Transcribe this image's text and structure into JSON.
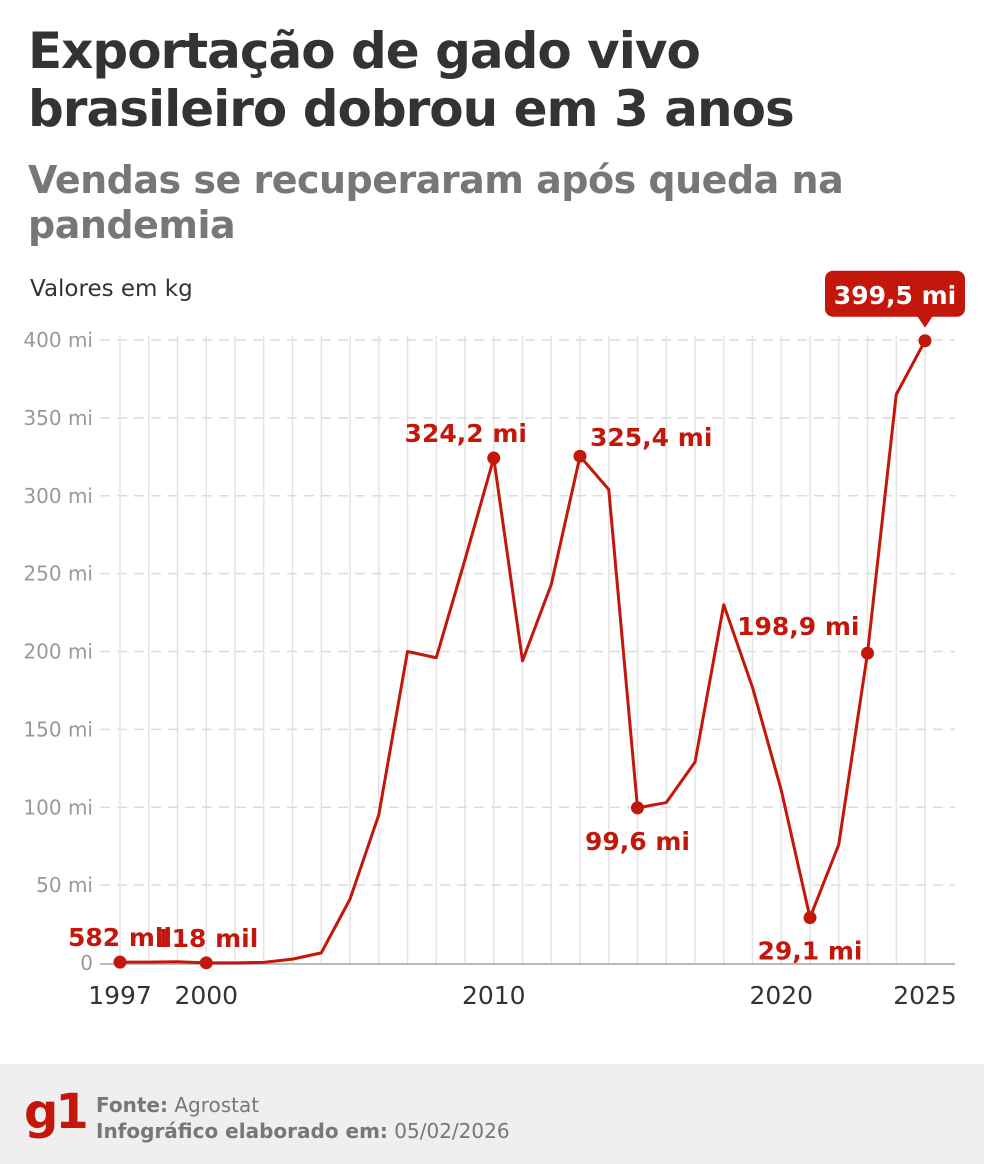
{
  "header": {
    "title": "Exportação de gado vivo brasileiro dobrou em 3 anos",
    "subtitle": "Vendas se recuperaram após queda na pandemia",
    "unit_note": "Valores em kg"
  },
  "chart_data": {
    "type": "line",
    "title": "Exportação de gado vivo brasileiro dobrou em 3 anos",
    "subtitle": "Vendas se recuperaram após queda na pandemia",
    "ylabel": "Valores em kg",
    "xlabel": "",
    "xlim": [
      1997,
      2025
    ],
    "ylim": [
      0,
      400
    ],
    "grid": true,
    "x_ticks": [
      1997,
      2000,
      2010,
      2020,
      2025
    ],
    "x_tick_labels": [
      "1997",
      "2000",
      "2010",
      "2020",
      "2025"
    ],
    "y_ticks": [
      0,
      50,
      100,
      150,
      200,
      250,
      300,
      350,
      400
    ],
    "y_tick_labels": [
      "0",
      "50 mi",
      "100 mi",
      "150 mi",
      "200 mi",
      "250 mi",
      "300 mi",
      "350 mi",
      "400 mi"
    ],
    "line_color": "#c4170c",
    "series": [
      {
        "x": [
          1997,
          1998,
          1999,
          2000,
          2001,
          2002,
          2003,
          2004,
          2005,
          2006,
          2007,
          2008,
          2009,
          2010,
          2011,
          2012,
          2013,
          2014,
          2015,
          2016,
          2017,
          2018,
          2019,
          2020,
          2021,
          2022,
          2023,
          2024,
          2025
        ],
        "values_millions": [
          0.582,
          0.6,
          0.8,
          0.118,
          0.1,
          0.4,
          2.5,
          6.5,
          41,
          95,
          200,
          196,
          259,
          324.2,
          194,
          243,
          325.4,
          304,
          99.6,
          103,
          129,
          230,
          177,
          111,
          29.1,
          76,
          198.9,
          365,
          399.5
        ]
      }
    ],
    "annotations": [
      {
        "x": 1997,
        "label": "582 mil",
        "position": "above"
      },
      {
        "x": 2000,
        "label": "118 mil",
        "position": "above"
      },
      {
        "x": 2010,
        "label": "324,2 mi",
        "position": "above-left"
      },
      {
        "x": 2013,
        "label": "325,4 mi",
        "position": "above-right"
      },
      {
        "x": 2015,
        "label": "99,6 mi",
        "position": "below"
      },
      {
        "x": 2021,
        "label": "29,1 mi",
        "position": "below"
      },
      {
        "x": 2023,
        "label": "198,9 mi",
        "position": "above-left"
      },
      {
        "x": 2025,
        "label": "399,5 mi",
        "position": "callout",
        "highlight": true
      }
    ]
  },
  "footer": {
    "logo": "g1",
    "source_label": "Fonte:",
    "source_value": "Agrostat",
    "date_label": "Infográfico elaborado em:",
    "date_value": "05/02/2026"
  }
}
